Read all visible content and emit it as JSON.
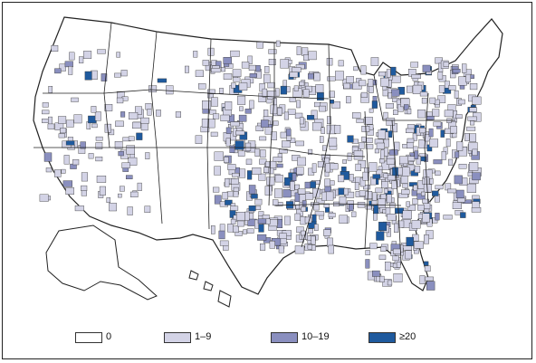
{
  "legend": {
    "items": [
      {
        "label": "0",
        "color": "#ffffff"
      },
      {
        "label": "1–9",
        "color": "#d3d3e6"
      },
      {
        "label": "10–19",
        "color": "#8a8fbf"
      },
      {
        "label": "≥20",
        "color": "#1f5a9e"
      }
    ]
  },
  "colors": {
    "state_border": "#222222",
    "county_border": "#333333",
    "background": "#ffffff"
  }
}
